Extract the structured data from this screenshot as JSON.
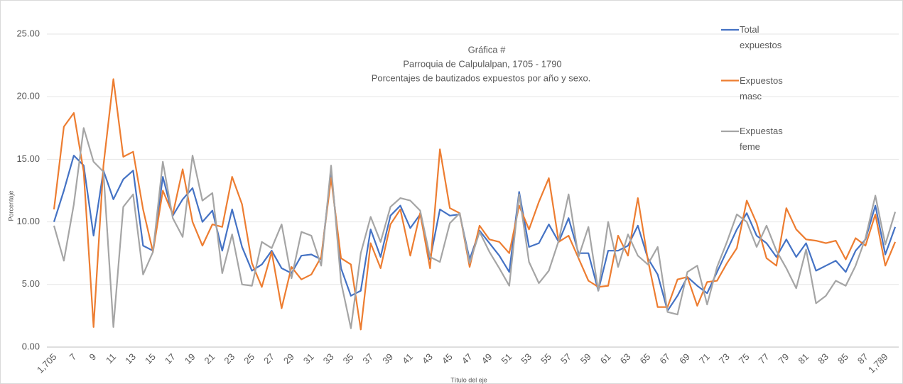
{
  "chart_data": {
    "type": "line",
    "title": "Gráfica #",
    "subtitle": [
      "Parroquia de Calpulalpan, 1705 - 1790",
      "Porcentajes de bautizados expuestos por año y sexo."
    ],
    "x_label": "Título del eje",
    "y_label": "Porcentaje",
    "categories": [
      "1,705",
      null,
      "7",
      null,
      "9",
      null,
      "11",
      null,
      "13",
      null,
      "15",
      null,
      "17",
      null,
      "19",
      null,
      "21",
      null,
      "23",
      null,
      "25",
      null,
      "27",
      null,
      "29",
      null,
      "31",
      null,
      "33",
      null,
      "35",
      null,
      "37",
      null,
      "39",
      null,
      "41",
      null,
      "43",
      null,
      "45",
      null,
      "47",
      null,
      "49",
      null,
      "51",
      null,
      "53",
      null,
      "55",
      null,
      "57",
      null,
      "59",
      null,
      "61",
      null,
      "63",
      null,
      "65",
      null,
      "67",
      null,
      "69",
      null,
      "71",
      null,
      "73",
      null,
      "75",
      null,
      "77",
      null,
      "79",
      null,
      "81",
      null,
      "83",
      null,
      "85",
      null,
      "87",
      null,
      "1,789",
      null
    ],
    "series": [
      {
        "name": "Total expuestos",
        "color": "#4472c4",
        "values": [
          10.0,
          12.5,
          15.3,
          14.5,
          8.9,
          14.1,
          11.8,
          13.4,
          14.1,
          8.1,
          7.7,
          13.6,
          10.5,
          11.8,
          12.7,
          10.0,
          10.9,
          7.7,
          11.0,
          8.0,
          6.1,
          6.6,
          7.7,
          6.3,
          5.9,
          7.3,
          7.4,
          7.0,
          14.0,
          6.3,
          4.1,
          4.5,
          9.4,
          7.2,
          10.5,
          11.3,
          9.5,
          10.6,
          7.0,
          11.0,
          10.5,
          10.6,
          7.0,
          9.3,
          8.3,
          7.3,
          6.0,
          12.4,
          8.0,
          8.3,
          9.8,
          8.4,
          10.3,
          7.5,
          7.5,
          4.5,
          7.7,
          7.7,
          8.1,
          9.7,
          7.1,
          5.8,
          2.9,
          4.1,
          5.6,
          4.9,
          4.3,
          6.0,
          7.7,
          9.4,
          10.7,
          8.9,
          8.3,
          7.2,
          8.6,
          7.2,
          8.3,
          6.1,
          6.5,
          6.9,
          6.0,
          7.7,
          8.6,
          11.3,
          7.4,
          9.6
        ]
      },
      {
        "name": "Expuestos masc",
        "color": "#ed7d31",
        "values": [
          11.0,
          17.6,
          18.7,
          14.0,
          1.6,
          14.5,
          21.4,
          15.2,
          15.6,
          11.0,
          7.6,
          12.5,
          10.6,
          14.2,
          10.0,
          8.1,
          9.8,
          9.6,
          13.6,
          11.4,
          6.7,
          4.8,
          7.6,
          3.1,
          6.4,
          5.4,
          5.8,
          7.2,
          13.5,
          7.1,
          6.6,
          1.4,
          8.3,
          6.3,
          9.8,
          11.0,
          7.3,
          10.7,
          6.3,
          15.8,
          11.1,
          10.7,
          6.4,
          9.7,
          8.6,
          8.4,
          7.5,
          11.3,
          9.4,
          11.6,
          13.5,
          8.4,
          8.9,
          7.1,
          5.3,
          4.8,
          4.9,
          8.9,
          7.3,
          11.9,
          7.0,
          3.2,
          3.2,
          5.4,
          5.6,
          3.3,
          5.2,
          5.3,
          6.7,
          7.9,
          11.7,
          9.9,
          7.1,
          6.5,
          11.1,
          9.4,
          8.6,
          8.5,
          8.3,
          8.5,
          7.0,
          8.7,
          8.1,
          10.6,
          6.5,
          8.4
        ]
      },
      {
        "name": "Expuestas feme",
        "color": "#a5a5a5",
        "values": [
          9.7,
          6.9,
          11.4,
          17.5,
          14.8,
          14.0,
          1.6,
          11.2,
          12.2,
          5.8,
          7.6,
          14.8,
          10.3,
          8.8,
          15.3,
          11.7,
          12.3,
          5.9,
          9.0,
          5.0,
          4.9,
          8.4,
          7.9,
          9.8,
          5.5,
          9.2,
          8.9,
          6.5,
          14.5,
          5.2,
          1.5,
          7.5,
          10.4,
          8.4,
          11.2,
          11.9,
          11.7,
          10.9,
          7.2,
          6.8,
          9.9,
          10.7,
          6.7,
          9.2,
          7.6,
          6.3,
          4.9,
          12.2,
          6.8,
          5.1,
          6.1,
          8.5,
          12.2,
          7.2,
          9.6,
          4.5,
          10.0,
          6.4,
          9.0,
          7.3,
          6.6,
          8.0,
          2.8,
          2.6,
          6.0,
          6.5,
          3.4,
          6.4,
          8.4,
          10.6,
          10.0,
          8.0,
          9.7,
          7.7,
          6.3,
          4.7,
          7.8,
          3.5,
          4.1,
          5.3,
          4.9,
          6.5,
          8.7,
          12.1,
          8.2,
          10.8
        ]
      }
    ],
    "ylim": [
      0,
      25
    ],
    "yticks": [
      {
        "value": 0,
        "label": "0.00"
      },
      {
        "value": 5,
        "label": "5.00"
      },
      {
        "value": 10,
        "label": "10.00"
      },
      {
        "value": 15,
        "label": "15.00"
      },
      {
        "value": 20,
        "label": "20.00"
      },
      {
        "value": 25,
        "label": "25.00"
      }
    ],
    "grid": true,
    "legend": "right"
  }
}
